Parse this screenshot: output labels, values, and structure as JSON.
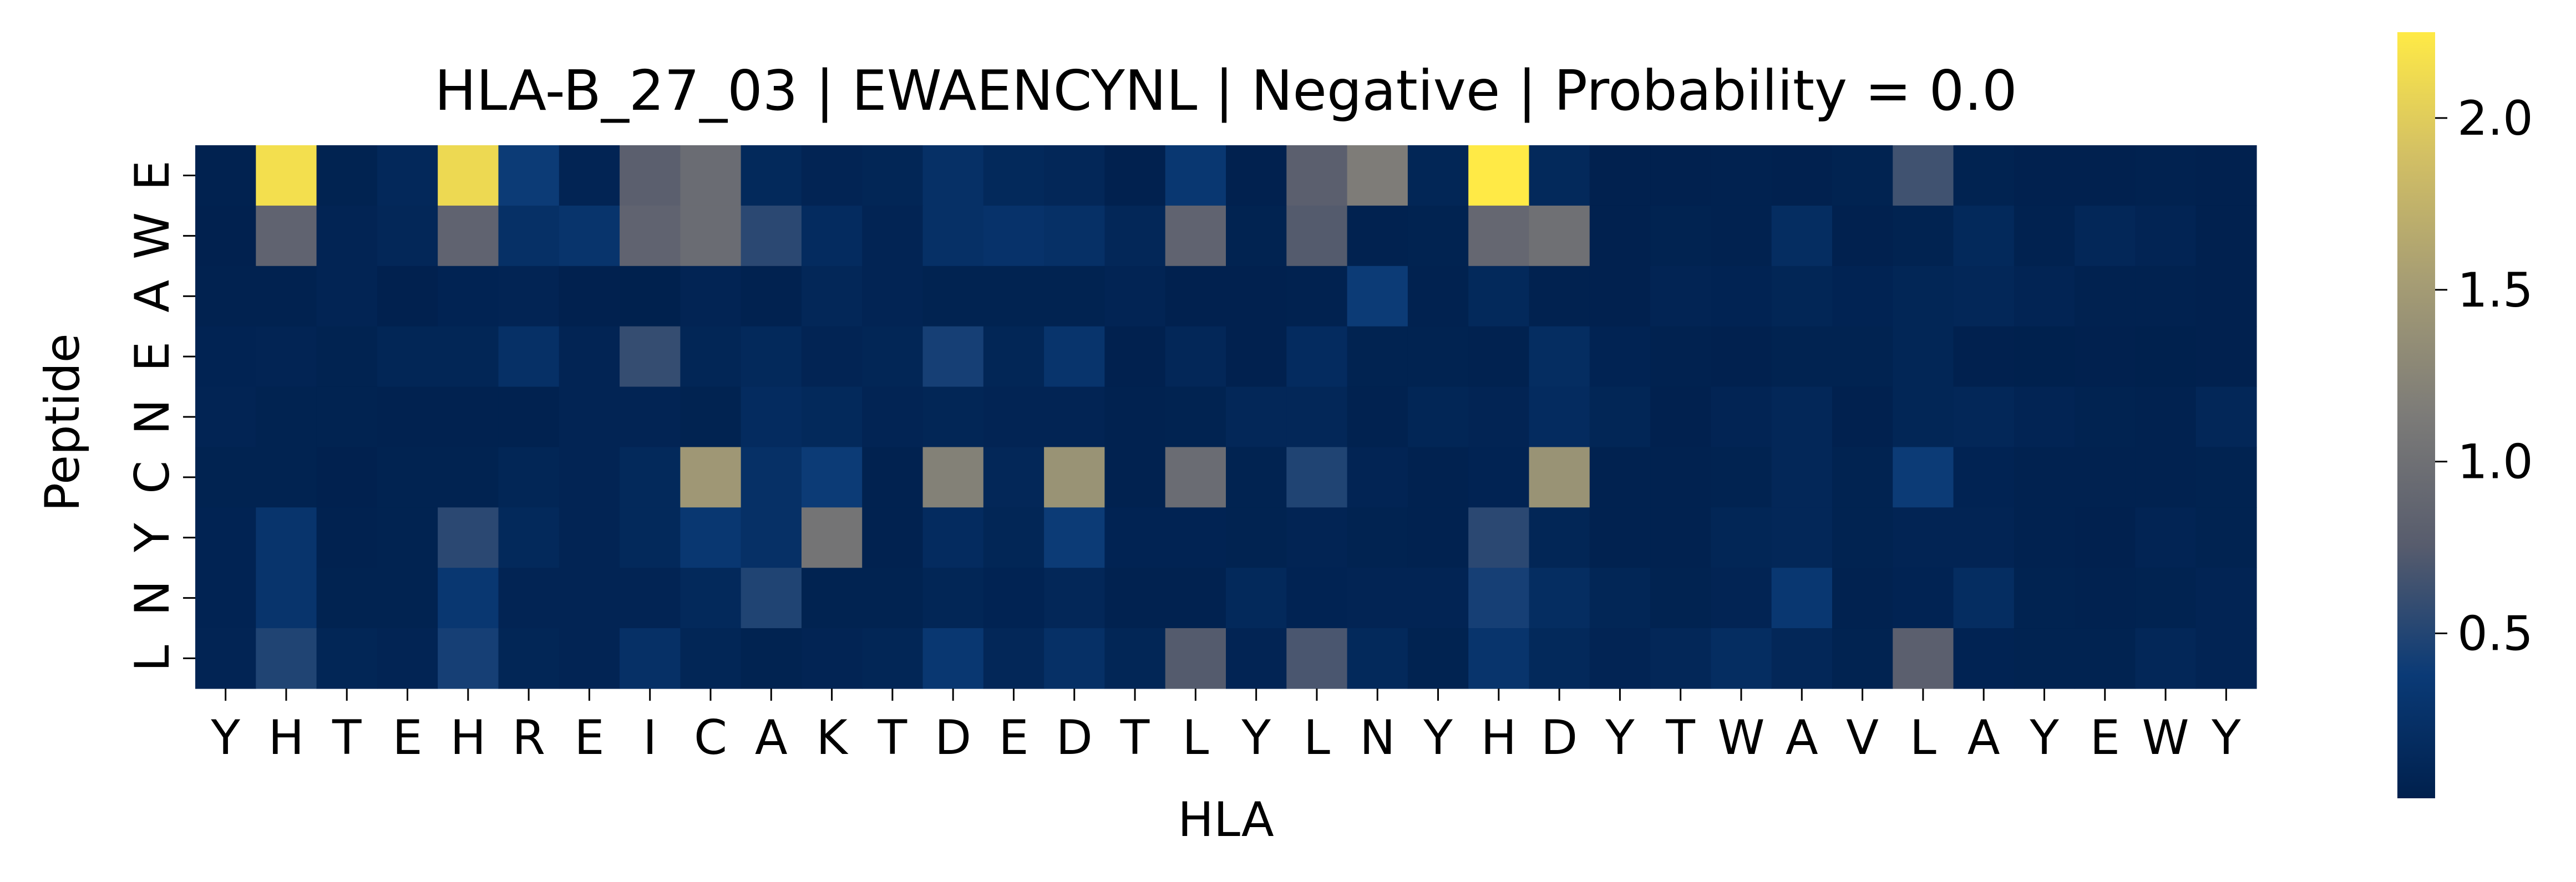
{
  "chart_data": {
    "type": "heatmap",
    "title": "HLA-B_27_03 | EWAENCYNL | Negative | Probability = 0.0",
    "xlabel": "HLA",
    "ylabel": "Peptide",
    "x_labels": [
      "Y",
      "H",
      "T",
      "E",
      "H",
      "R",
      "E",
      "I",
      "C",
      "A",
      "K",
      "T",
      "D",
      "E",
      "D",
      "T",
      "L",
      "Y",
      "L",
      "N",
      "Y",
      "H",
      "D",
      "Y",
      "T",
      "W",
      "A",
      "V",
      "L",
      "A",
      "Y",
      "E",
      "W",
      "Y"
    ],
    "y_labels": [
      "E",
      "W",
      "A",
      "E",
      "N",
      "C",
      "Y",
      "N",
      "L"
    ],
    "values": [
      [
        0.05,
        2.15,
        0.06,
        0.14,
        2.1,
        0.4,
        0.08,
        0.8,
        0.95,
        0.15,
        0.08,
        0.1,
        0.25,
        0.15,
        0.12,
        0.04,
        0.35,
        0.04,
        0.8,
        1.15,
        0.1,
        2.25,
        0.15,
        0.04,
        0.04,
        0.05,
        0.04,
        0.06,
        0.65,
        0.06,
        0.04,
        0.04,
        0.05,
        0.04
      ],
      [
        0.04,
        0.85,
        0.08,
        0.12,
        0.85,
        0.25,
        0.3,
        0.85,
        0.95,
        0.55,
        0.18,
        0.08,
        0.25,
        0.28,
        0.25,
        0.12,
        0.85,
        0.06,
        0.75,
        0.05,
        0.06,
        0.9,
        1.0,
        0.04,
        0.06,
        0.05,
        0.2,
        0.04,
        0.06,
        0.15,
        0.05,
        0.12,
        0.08,
        0.04
      ],
      [
        0.05,
        0.05,
        0.08,
        0.04,
        0.07,
        0.08,
        0.04,
        0.03,
        0.08,
        0.05,
        0.12,
        0.08,
        0.06,
        0.06,
        0.06,
        0.08,
        0.04,
        0.04,
        0.05,
        0.4,
        0.05,
        0.15,
        0.05,
        0.04,
        0.08,
        0.07,
        0.1,
        0.07,
        0.1,
        0.12,
        0.08,
        0.05,
        0.05,
        0.04
      ],
      [
        0.07,
        0.08,
        0.06,
        0.1,
        0.1,
        0.25,
        0.08,
        0.6,
        0.1,
        0.15,
        0.08,
        0.1,
        0.45,
        0.1,
        0.3,
        0.04,
        0.12,
        0.04,
        0.18,
        0.06,
        0.06,
        0.05,
        0.2,
        0.07,
        0.05,
        0.04,
        0.06,
        0.06,
        0.1,
        0.04,
        0.03,
        0.04,
        0.03,
        0.04
      ],
      [
        0.08,
        0.06,
        0.06,
        0.05,
        0.05,
        0.05,
        0.08,
        0.08,
        0.06,
        0.18,
        0.15,
        0.08,
        0.1,
        0.08,
        0.08,
        0.05,
        0.06,
        0.12,
        0.12,
        0.05,
        0.1,
        0.08,
        0.18,
        0.1,
        0.04,
        0.08,
        0.12,
        0.04,
        0.1,
        0.12,
        0.08,
        0.06,
        0.05,
        0.12
      ],
      [
        0.06,
        0.06,
        0.04,
        0.06,
        0.06,
        0.1,
        0.08,
        0.15,
        1.45,
        0.25,
        0.4,
        0.05,
        1.2,
        0.12,
        1.4,
        0.05,
        0.95,
        0.06,
        0.5,
        0.08,
        0.05,
        0.07,
        1.4,
        0.05,
        0.05,
        0.06,
        0.12,
        0.06,
        0.4,
        0.07,
        0.05,
        0.05,
        0.05,
        0.06
      ],
      [
        0.07,
        0.3,
        0.05,
        0.06,
        0.55,
        0.15,
        0.08,
        0.15,
        0.35,
        0.25,
        1.05,
        0.05,
        0.18,
        0.1,
        0.4,
        0.07,
        0.07,
        0.06,
        0.08,
        0.06,
        0.05,
        0.55,
        0.1,
        0.05,
        0.05,
        0.1,
        0.12,
        0.06,
        0.08,
        0.08,
        0.05,
        0.04,
        0.08,
        0.06
      ],
      [
        0.07,
        0.3,
        0.06,
        0.06,
        0.35,
        0.08,
        0.08,
        0.08,
        0.15,
        0.5,
        0.06,
        0.06,
        0.1,
        0.07,
        0.12,
        0.05,
        0.05,
        0.15,
        0.07,
        0.08,
        0.08,
        0.45,
        0.2,
        0.1,
        0.06,
        0.08,
        0.35,
        0.05,
        0.07,
        0.2,
        0.06,
        0.05,
        0.06,
        0.08
      ],
      [
        0.08,
        0.5,
        0.1,
        0.08,
        0.45,
        0.1,
        0.08,
        0.25,
        0.1,
        0.06,
        0.08,
        0.1,
        0.35,
        0.12,
        0.25,
        0.1,
        0.75,
        0.08,
        0.7,
        0.15,
        0.06,
        0.3,
        0.15,
        0.08,
        0.12,
        0.2,
        0.12,
        0.06,
        0.8,
        0.07,
        0.06,
        0.06,
        0.12,
        0.08
      ]
    ],
    "colorbar": {
      "min": 0.02,
      "max": 2.25,
      "ticks": [
        0.5,
        1.0,
        1.5,
        2.0
      ],
      "tick_labels": [
        "0.5",
        "1.0",
        "1.5",
        "2.0"
      ]
    },
    "colormap": [
      "#00204d",
      "#0a3a76",
      "#575c6d",
      "#7c7b78",
      "#a59c74",
      "#d3c064",
      "#ffea46"
    ]
  }
}
